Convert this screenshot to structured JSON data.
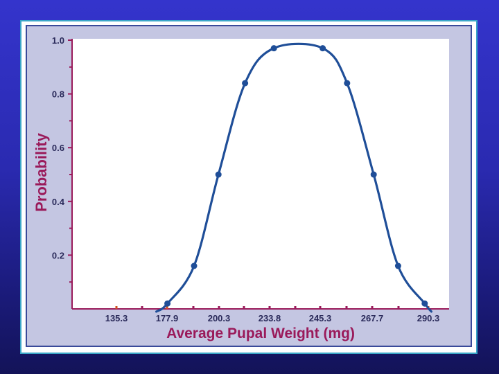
{
  "chart_data": {
    "type": "line",
    "title": "",
    "xlabel": "Average Pupal Weight (mg)",
    "ylabel": "Probability",
    "x_ticks": [
      "135.3",
      "177.9",
      "200.3",
      "233.8",
      "245.3",
      "267.7",
      "290.3"
    ],
    "y_ticks": [
      "0.2",
      "0.4",
      "0.6",
      "0.8",
      "1.0"
    ],
    "x_range": [
      125,
      295
    ],
    "ylim": [
      0,
      1.0
    ],
    "series": [
      {
        "color": "#1f4e98",
        "points": [
          {
            "x": 168.0,
            "y": 0.02
          },
          {
            "x": 180.0,
            "y": 0.16
          },
          {
            "x": 191.0,
            "y": 0.5
          },
          {
            "x": 203.0,
            "y": 0.84
          },
          {
            "x": 216.0,
            "y": 0.97
          },
          {
            "x": 238.0,
            "y": 0.97
          },
          {
            "x": 249.0,
            "y": 0.84
          },
          {
            "x": 261.0,
            "y": 0.5
          },
          {
            "x": 272.0,
            "y": 0.16
          },
          {
            "x": 284.0,
            "y": 0.02
          }
        ]
      }
    ],
    "colors": {
      "axes": "#9a1a5a",
      "tick_labels": "#2a2a5a",
      "orange_ticks": "#d05020"
    }
  }
}
